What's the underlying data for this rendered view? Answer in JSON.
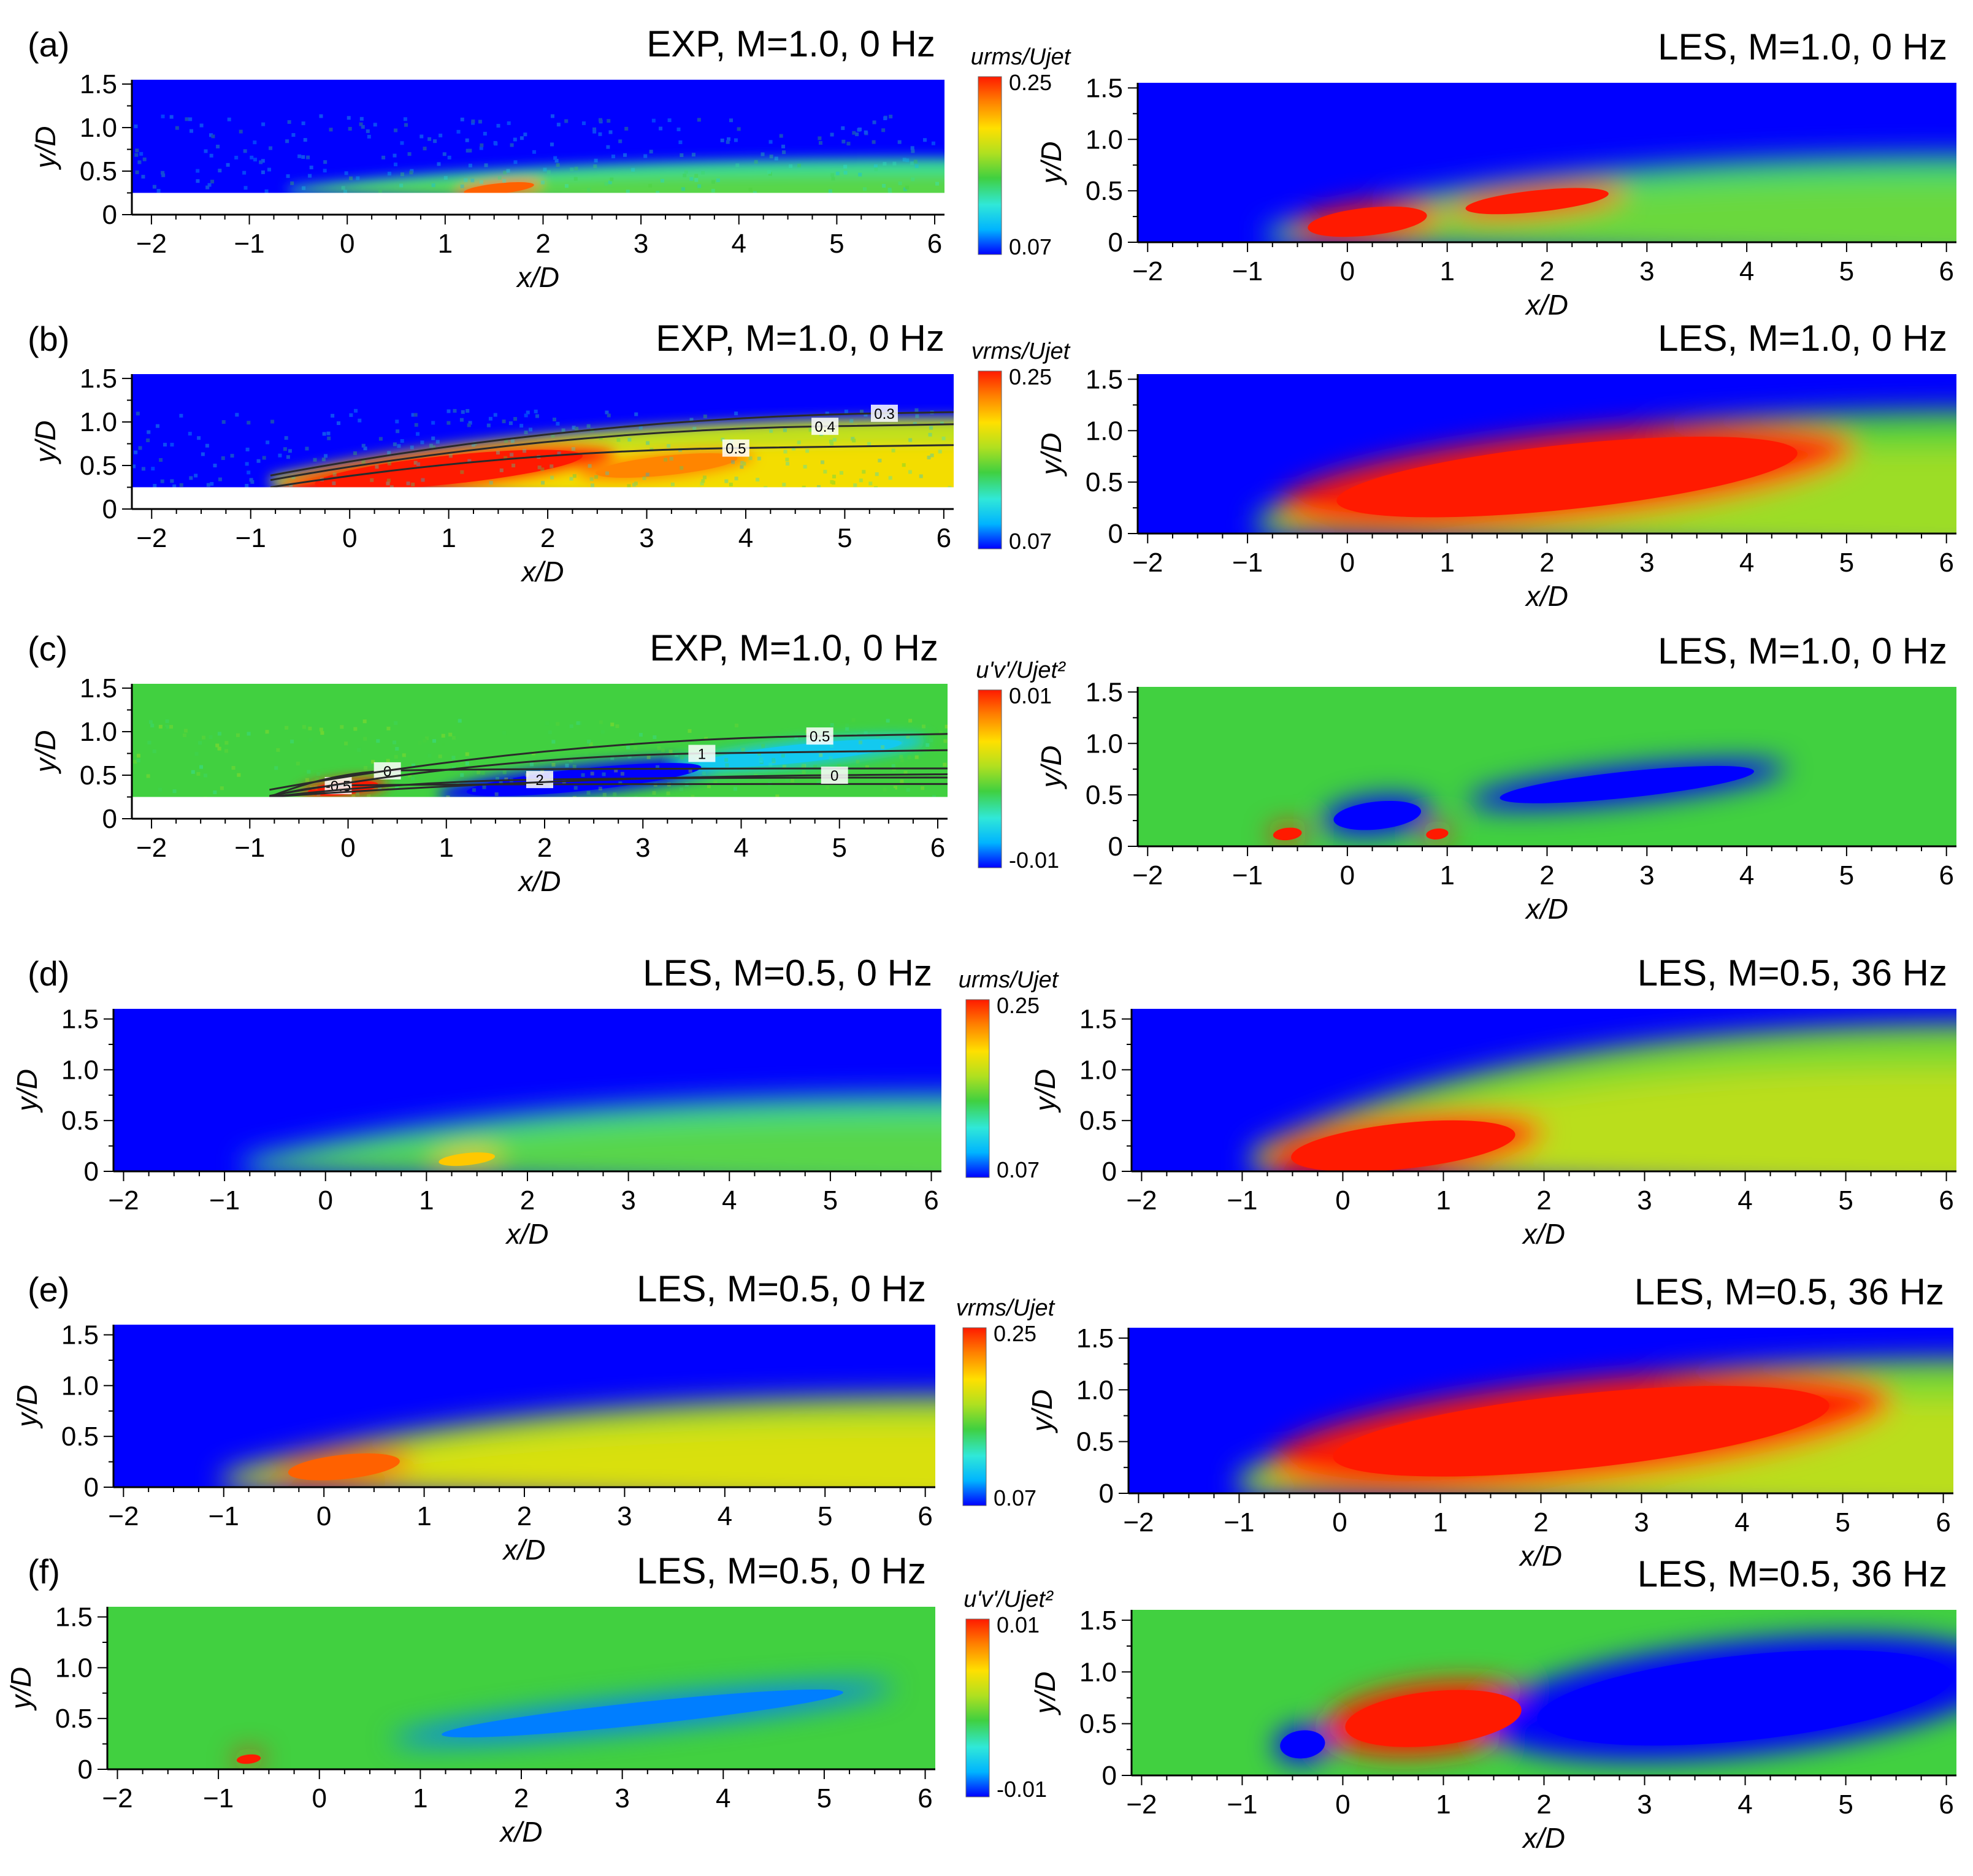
{
  "figure": {
    "colormap": [
      "#0000ff",
      "#00b4ff",
      "#30e8d8",
      "#40d040",
      "#b0e020",
      "#ffe000",
      "#ff8000",
      "#ff1a00"
    ],
    "background_color": "#ffffff",
    "axis_color": "#000000",
    "contour_color": "#2a2a2a"
  },
  "chart_data": [
    {
      "id": "a-left",
      "panel_label": "(a)",
      "title": "EXP, M=1.0, 0 Hz",
      "source": "EXP",
      "M": 1.0,
      "frequency_hz": 0,
      "quantity": "u_rms/U_jet",
      "type": "heatmap",
      "xlabel": "x/D",
      "ylabel": "y/D",
      "xlim": [
        -2.2,
        6.1
      ],
      "ylim": [
        0,
        1.55
      ],
      "x_ticks": [
        "−2",
        "−1",
        "0",
        "1",
        "2",
        "3",
        "4",
        "5",
        "6"
      ],
      "y_ticks": [
        "0",
        "0.5",
        "1.0",
        "1.5"
      ],
      "data_ymin": 0.25,
      "noisy": true,
      "colorbar": {
        "label": "urms/Ujet",
        "max": "0.25",
        "min": "0.07"
      },
      "contours": [],
      "features": [
        {
          "kind": "layer",
          "x0": -0.6,
          "y0": 0.25,
          "x1": 6.1,
          "y1": 0.65,
          "level": 0.35
        },
        {
          "kind": "blob",
          "cx": 1.55,
          "cy": 0.3,
          "rx": 0.45,
          "ry": 0.08,
          "level": 0.9
        }
      ]
    },
    {
      "id": "a-right",
      "panel_label": "",
      "title": "LES, M=1.0, 0 Hz",
      "source": "LES",
      "M": 1.0,
      "frequency_hz": 0,
      "quantity": "u_rms/U_jet",
      "type": "heatmap",
      "xlabel": "x/D",
      "ylabel": "y/D",
      "xlim": [
        -2.1,
        6.1
      ],
      "ylim": [
        0,
        1.55
      ],
      "x_ticks": [
        "−2",
        "−1",
        "0",
        "1",
        "2",
        "3",
        "4",
        "5",
        "6"
      ],
      "y_ticks": [
        "0",
        "0.5",
        "1.0",
        "1.5"
      ],
      "data_ymin": 0,
      "noisy": false,
      "contours": [],
      "features": [
        {
          "kind": "layer",
          "x0": -0.8,
          "y0": 0,
          "x1": 6.1,
          "y1": 0.85,
          "level": 0.38
        },
        {
          "kind": "blob",
          "cx": 0.2,
          "cy": 0.2,
          "rx": 0.75,
          "ry": 0.18,
          "level": 1.0
        },
        {
          "kind": "blob",
          "cx": 1.9,
          "cy": 0.4,
          "rx": 0.9,
          "ry": 0.14,
          "level": 1.0
        }
      ]
    },
    {
      "id": "b-left",
      "panel_label": "(b)",
      "title": "EXP, M=1.0, 0 Hz",
      "source": "EXP",
      "M": 1.0,
      "frequency_hz": 0,
      "quantity": "v_rms/U_jet",
      "type": "heatmap",
      "xlabel": "x/D",
      "ylabel": "y/D",
      "xlim": [
        -2.2,
        6.1
      ],
      "ylim": [
        0,
        1.55
      ],
      "x_ticks": [
        "−2",
        "−1",
        "0",
        "1",
        "2",
        "3",
        "4",
        "5",
        "6"
      ],
      "y_ticks": [
        "0",
        "0.5",
        "1.0",
        "1.5"
      ],
      "data_ymin": 0.25,
      "noisy": true,
      "colorbar": {
        "label": "vrms/Ujet",
        "max": "0.25",
        "min": "0.07"
      },
      "contours": [
        {
          "label": "0.3",
          "lx": 5.4,
          "ly": 1.1
        },
        {
          "label": "0.4",
          "lx": 4.8,
          "ly": 0.95
        },
        {
          "label": "0.5",
          "lx": 3.9,
          "ly": 0.7
        }
      ],
      "features": [
        {
          "kind": "layer",
          "x0": -0.8,
          "y0": 0.25,
          "x1": 6.1,
          "y1": 1.05,
          "level": 0.6
        },
        {
          "kind": "blob",
          "cx": 1.0,
          "cy": 0.45,
          "rx": 1.7,
          "ry": 0.22,
          "level": 1.0
        },
        {
          "kind": "blob",
          "cx": 3.2,
          "cy": 0.5,
          "rx": 0.9,
          "ry": 0.15,
          "level": 0.85
        }
      ]
    },
    {
      "id": "b-right",
      "panel_label": "",
      "title": "LES, M=1.0, 0 Hz",
      "source": "LES",
      "M": 1.0,
      "frequency_hz": 0,
      "quantity": "v_rms/U_jet",
      "type": "heatmap",
      "xlabel": "x/D",
      "ylabel": "y/D",
      "xlim": [
        -2.1,
        6.1
      ],
      "ylim": [
        0,
        1.55
      ],
      "x_ticks": [
        "−2",
        "−1",
        "0",
        "1",
        "2",
        "3",
        "4",
        "5",
        "6"
      ],
      "y_ticks": [
        "0",
        "0.5",
        "1.0",
        "1.5"
      ],
      "data_ymin": 0,
      "noisy": false,
      "contours": [],
      "features": [
        {
          "kind": "layer",
          "x0": -0.9,
          "y0": 0,
          "x1": 6.1,
          "y1": 1.2,
          "level": 0.45
        },
        {
          "kind": "blob",
          "cx": 2.2,
          "cy": 0.55,
          "rx": 2.9,
          "ry": 0.42,
          "level": 1.0
        }
      ]
    },
    {
      "id": "c-left",
      "panel_label": "(c)",
      "title": "EXP, M=1.0, 0 Hz",
      "source": "EXP",
      "M": 1.0,
      "frequency_hz": 0,
      "quantity": "u'v'/U_jet^2",
      "type": "heatmap",
      "xlabel": "x/D",
      "ylabel": "y/D",
      "xlim": [
        -2.2,
        6.1
      ],
      "ylim": [
        0,
        1.55
      ],
      "x_ticks": [
        "−2",
        "−1",
        "0",
        "1",
        "2",
        "3",
        "4",
        "5",
        "6"
      ],
      "y_ticks": [
        "0",
        "0.5",
        "1.0",
        "1.5"
      ],
      "data_ymin": 0.25,
      "noisy": true,
      "diverging": true,
      "colorbar": {
        "label": "u'v'/Ujet²",
        "max": "0.01",
        "min": "-0.01"
      },
      "contours": [
        {
          "label": "-0.5",
          "lx": -0.1,
          "ly": 0.38
        },
        {
          "label": "0",
          "lx": 0.4,
          "ly": 0.55
        },
        {
          "label": "2",
          "lx": 1.95,
          "ly": 0.45
        },
        {
          "label": "1",
          "lx": 3.6,
          "ly": 0.75
        },
        {
          "label": "0.5",
          "lx": 4.8,
          "ly": 0.95
        },
        {
          "label": "0",
          "lx": 4.95,
          "ly": 0.5
        }
      ],
      "features": [
        {
          "kind": "blob",
          "cx": -0.05,
          "cy": 0.35,
          "rx": 0.45,
          "ry": 0.1,
          "level": 1.0
        },
        {
          "kind": "blob",
          "cx": 2.4,
          "cy": 0.45,
          "rx": 1.5,
          "ry": 0.17,
          "level": 0.0
        },
        {
          "kind": "blob",
          "cx": 4.6,
          "cy": 0.75,
          "rx": 1.3,
          "ry": 0.14,
          "level": 0.2
        }
      ]
    },
    {
      "id": "c-right",
      "panel_label": "",
      "title": "LES, M=1.0, 0 Hz",
      "source": "LES",
      "M": 1.0,
      "frequency_hz": 0,
      "quantity": "u'v'/U_jet^2",
      "type": "heatmap",
      "xlabel": "x/D",
      "ylabel": "y/D",
      "xlim": [
        -2.1,
        6.1
      ],
      "ylim": [
        0,
        1.55
      ],
      "x_ticks": [
        "−2",
        "−1",
        "0",
        "1",
        "2",
        "3",
        "4",
        "5",
        "6"
      ],
      "y_ticks": [
        "0",
        "0.5",
        "1.0",
        "1.5"
      ],
      "data_ymin": 0,
      "noisy": false,
      "diverging": true,
      "contours": [],
      "features": [
        {
          "kind": "blob",
          "cx": -0.6,
          "cy": 0.12,
          "rx": 0.18,
          "ry": 0.08,
          "level": 1.0
        },
        {
          "kind": "blob",
          "cx": 0.9,
          "cy": 0.12,
          "rx": 0.14,
          "ry": 0.07,
          "level": 1.0
        },
        {
          "kind": "blob",
          "cx": 0.3,
          "cy": 0.3,
          "rx": 0.55,
          "ry": 0.18,
          "level": 0.0
        },
        {
          "kind": "blob",
          "cx": 2.8,
          "cy": 0.6,
          "rx": 1.6,
          "ry": 0.17,
          "level": 0.0
        }
      ]
    },
    {
      "id": "d-left",
      "panel_label": "(d)",
      "title": "LES, M=0.5, 0 Hz",
      "source": "LES",
      "M": 0.5,
      "frequency_hz": 0,
      "quantity": "u_rms/U_jet",
      "type": "heatmap",
      "xlabel": "x/D",
      "ylabel": "y/D",
      "xlim": [
        -2.1,
        6.1
      ],
      "ylim": [
        0,
        1.6
      ],
      "x_ticks": [
        "−2",
        "−1",
        "0",
        "1",
        "2",
        "3",
        "4",
        "5",
        "6"
      ],
      "y_ticks": [
        "0",
        "0.5",
        "1.0",
        "1.5"
      ],
      "data_ymin": 0,
      "noisy": false,
      "colorbar": {
        "label": "urms/Ujet",
        "max": "0.25",
        "min": "0.07"
      },
      "contours": [],
      "features": [
        {
          "kind": "layer",
          "x0": -0.8,
          "y0": 0,
          "x1": 6.1,
          "y1": 0.75,
          "level": 0.35
        },
        {
          "kind": "blob",
          "cx": 1.4,
          "cy": 0.12,
          "rx": 0.35,
          "ry": 0.08,
          "level": 0.75
        }
      ]
    },
    {
      "id": "d-right",
      "panel_label": "",
      "title": "LES, M=0.5, 36 Hz",
      "source": "LES",
      "M": 0.5,
      "frequency_hz": 36,
      "quantity": "u_rms/U_jet",
      "type": "heatmap",
      "xlabel": "x/D",
      "ylabel": "y/D",
      "xlim": [
        -2.1,
        6.1
      ],
      "ylim": [
        0,
        1.6
      ],
      "x_ticks": [
        "−2",
        "−1",
        "0",
        "1",
        "2",
        "3",
        "4",
        "5",
        "6"
      ],
      "y_ticks": [
        "0",
        "0.5",
        "1.0",
        "1.5"
      ],
      "data_ymin": 0,
      "noisy": false,
      "contours": [],
      "features": [
        {
          "kind": "layer",
          "x0": -0.9,
          "y0": 0,
          "x1": 6.1,
          "y1": 1.45,
          "level": 0.5
        },
        {
          "kind": "blob",
          "cx": 0.6,
          "cy": 0.25,
          "rx": 1.4,
          "ry": 0.3,
          "level": 1.0
        }
      ]
    },
    {
      "id": "e-left",
      "panel_label": "(e)",
      "title": "LES, M=0.5, 0 Hz",
      "source": "LES",
      "M": 0.5,
      "frequency_hz": 0,
      "quantity": "v_rms/U_jet",
      "type": "heatmap",
      "xlabel": "x/D",
      "ylabel": "y/D",
      "xlim": [
        -2.1,
        6.1
      ],
      "ylim": [
        0,
        1.6
      ],
      "x_ticks": [
        "−2",
        "−1",
        "0",
        "1",
        "2",
        "3",
        "4",
        "5",
        "6"
      ],
      "y_ticks": [
        "0",
        "0.5",
        "1.0",
        "1.5"
      ],
      "data_ymin": 0,
      "noisy": false,
      "colorbar": {
        "label": "vrms/Ujet",
        "max": "0.25",
        "min": "0.07"
      },
      "contours": [],
      "features": [
        {
          "kind": "layer",
          "x0": -1.0,
          "y0": 0,
          "x1": 6.1,
          "y1": 0.9,
          "level": 0.55
        },
        {
          "kind": "blob",
          "cx": 0.2,
          "cy": 0.2,
          "rx": 0.7,
          "ry": 0.16,
          "level": 0.9
        }
      ]
    },
    {
      "id": "e-right",
      "panel_label": "",
      "title": "LES, M=0.5, 36 Hz",
      "source": "LES",
      "M": 0.5,
      "frequency_hz": 36,
      "quantity": "v_rms/U_jet",
      "type": "heatmap",
      "xlabel": "x/D",
      "ylabel": "y/D",
      "xlim": [
        -2.1,
        6.1
      ],
      "ylim": [
        0,
        1.6
      ],
      "x_ticks": [
        "−2",
        "−1",
        "0",
        "1",
        "2",
        "3",
        "4",
        "5",
        "6"
      ],
      "y_ticks": [
        "0",
        "0.5",
        "1.0",
        "1.5"
      ],
      "data_ymin": 0,
      "noisy": false,
      "contours": [],
      "features": [
        {
          "kind": "layer",
          "x0": -1.0,
          "y0": 0,
          "x1": 6.1,
          "y1": 1.3,
          "level": 0.5
        },
        {
          "kind": "blob",
          "cx": 2.4,
          "cy": 0.6,
          "rx": 3.1,
          "ry": 0.48,
          "level": 1.0
        }
      ]
    },
    {
      "id": "f-left",
      "panel_label": "(f)",
      "title": "LES, M=0.5, 0 Hz",
      "source": "LES",
      "M": 0.5,
      "frequency_hz": 0,
      "quantity": "u'v'/U_jet^2",
      "type": "heatmap",
      "xlabel": "x/D",
      "ylabel": "y/D",
      "xlim": [
        -2.1,
        6.1
      ],
      "ylim": [
        0,
        1.6
      ],
      "x_ticks": [
        "−2",
        "−1",
        "0",
        "1",
        "2",
        "3",
        "4",
        "5",
        "6"
      ],
      "y_ticks": [
        "0",
        "0.5",
        "1.0",
        "1.5"
      ],
      "data_ymin": 0,
      "noisy": false,
      "diverging": true,
      "colorbar": {
        "label": "u'v'/Ujet²",
        "max": "0.01",
        "min": "-0.01"
      },
      "contours": [],
      "features": [
        {
          "kind": "blob",
          "cx": -0.7,
          "cy": 0.1,
          "rx": 0.15,
          "ry": 0.06,
          "level": 1.0
        },
        {
          "kind": "blob",
          "cx": 3.2,
          "cy": 0.55,
          "rx": 2.5,
          "ry": 0.15,
          "level": 0.1
        }
      ]
    },
    {
      "id": "f-right",
      "panel_label": "",
      "title": "LES, M=0.5, 36 Hz",
      "source": "LES",
      "M": 0.5,
      "frequency_hz": 36,
      "quantity": "u'v'/U_jet^2",
      "type": "heatmap",
      "xlabel": "x/D",
      "ylabel": "y/D",
      "xlim": [
        -2.1,
        6.1
      ],
      "ylim": [
        0,
        1.6
      ],
      "x_ticks": [
        "−2",
        "−1",
        "0",
        "1",
        "2",
        "3",
        "4",
        "5",
        "6"
      ],
      "y_ticks": [
        "0",
        "0.5",
        "1.0",
        "1.5"
      ],
      "data_ymin": 0,
      "noisy": false,
      "diverging": true,
      "contours": [],
      "features": [
        {
          "kind": "blob",
          "cx": 0.9,
          "cy": 0.55,
          "rx": 1.1,
          "ry": 0.35,
          "level": 1.0
        },
        {
          "kind": "blob",
          "cx": -0.4,
          "cy": 0.3,
          "rx": 0.28,
          "ry": 0.18,
          "level": 0.0
        },
        {
          "kind": "blob",
          "cx": 4.0,
          "cy": 0.75,
          "rx": 2.6,
          "ry": 0.55,
          "level": 0.0
        }
      ]
    }
  ]
}
